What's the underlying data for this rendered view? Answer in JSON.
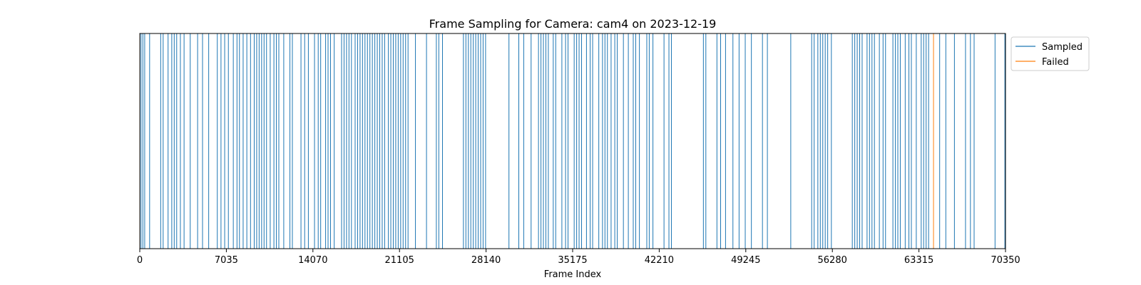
{
  "chart_data": {
    "type": "event-line",
    "title": "Frame Sampling for Camera: cam4 on 2023-12-19",
    "xlabel": "Frame Index",
    "ylabel": "",
    "xlim": [
      0,
      70350
    ],
    "xticks": [
      0,
      7035,
      14070,
      21105,
      28140,
      35175,
      42210,
      49245,
      56280,
      63315,
      70350
    ],
    "xtick_labels": [
      "0",
      "7035",
      "14070",
      "21105",
      "28140",
      "35175",
      "42210",
      "49245",
      "56280",
      "63315",
      "70350"
    ],
    "legend_position": "outside-top-right",
    "series": [
      {
        "name": "Sampled",
        "color": "#1f77b4",
        "frames": [
          100,
          250,
          400,
          800,
          1700,
          1900,
          2300,
          2600,
          2800,
          3000,
          3300,
          3600,
          4100,
          4700,
          5100,
          5600,
          6300,
          6600,
          6900,
          7200,
          7600,
          7900,
          8100,
          8400,
          8700,
          9000,
          9300,
          9500,
          9700,
          9900,
          10100,
          10300,
          10600,
          10900,
          11100,
          11300,
          11700,
          12200,
          12400,
          13100,
          13400,
          13700,
          14200,
          14500,
          14700,
          15100,
          15300,
          15500,
          15800,
          16400,
          16600,
          16800,
          17000,
          17200,
          17500,
          17700,
          17900,
          18100,
          18300,
          18500,
          18700,
          18900,
          19100,
          19300,
          19500,
          19700,
          19900,
          20200,
          20400,
          20600,
          20800,
          21000,
          21200,
          21400,
          21600,
          21800,
          22400,
          23300,
          24100,
          24300,
          24600,
          26300,
          26500,
          26700,
          26900,
          27100,
          27300,
          27500,
          27700,
          27900,
          28100,
          30000,
          30800,
          31200,
          31800,
          32400,
          32600,
          32800,
          33000,
          33200,
          33600,
          33800,
          34300,
          34600,
          34800,
          35300,
          35500,
          35700,
          35900,
          36300,
          36600,
          36800,
          37300,
          37600,
          37800,
          38000,
          38300,
          38600,
          38800,
          39300,
          39700,
          40100,
          40300,
          40600,
          41200,
          41400,
          41700,
          42600,
          43000,
          43200,
          45800,
          46000,
          46900,
          47200,
          47600,
          48200,
          48700,
          49200,
          49700,
          50600,
          51000,
          52900,
          54600,
          54800,
          55100,
          55300,
          55500,
          55700,
          55900,
          56200,
          57900,
          58100,
          58300,
          58500,
          58700,
          59100,
          59300,
          59500,
          59700,
          60100,
          60400,
          60600,
          61200,
          61400,
          61600,
          61800,
          62200,
          62500,
          62700,
          63100,
          63500,
          63700,
          63900,
          64100,
          65000,
          65500,
          66200,
          67100,
          67500,
          67800,
          69500,
          70300
        ]
      },
      {
        "name": "Failed",
        "color": "#ff7f0e",
        "frames": [
          64500
        ]
      }
    ]
  }
}
